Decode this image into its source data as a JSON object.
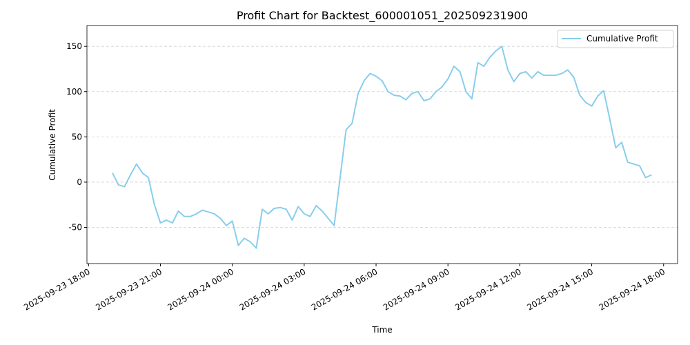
{
  "chart_data": {
    "type": "line",
    "title": "Profit Chart for Backtest_600001051_202509231900",
    "x_label": "Time",
    "y_label": "Cumulative Profit",
    "x": [
      "2025-09-23 19:00",
      "2025-09-23 19:15",
      "2025-09-23 19:30",
      "2025-09-23 19:45",
      "2025-09-23 20:00",
      "2025-09-23 20:15",
      "2025-09-23 20:30",
      "2025-09-23 20:45",
      "2025-09-23 21:00",
      "2025-09-23 21:15",
      "2025-09-23 21:30",
      "2025-09-23 21:45",
      "2025-09-23 22:00",
      "2025-09-23 22:15",
      "2025-09-23 22:30",
      "2025-09-23 22:45",
      "2025-09-23 23:00",
      "2025-09-23 23:15",
      "2025-09-23 23:30",
      "2025-09-23 23:45",
      "2025-09-24 00:00",
      "2025-09-24 00:15",
      "2025-09-24 00:30",
      "2025-09-24 00:45",
      "2025-09-24 01:00",
      "2025-09-24 01:15",
      "2025-09-24 01:30",
      "2025-09-24 01:45",
      "2025-09-24 02:00",
      "2025-09-24 02:15",
      "2025-09-24 02:30",
      "2025-09-24 02:45",
      "2025-09-24 03:00",
      "2025-09-24 03:15",
      "2025-09-24 03:30",
      "2025-09-24 03:45",
      "2025-09-24 04:00",
      "2025-09-24 04:15",
      "2025-09-24 04:30",
      "2025-09-24 04:45",
      "2025-09-24 05:00",
      "2025-09-24 05:15",
      "2025-09-24 05:30",
      "2025-09-24 05:45",
      "2025-09-24 06:00",
      "2025-09-24 06:15",
      "2025-09-24 06:30",
      "2025-09-24 06:45",
      "2025-09-24 07:00",
      "2025-09-24 07:15",
      "2025-09-24 07:30",
      "2025-09-24 07:45",
      "2025-09-24 08:00",
      "2025-09-24 08:15",
      "2025-09-24 08:30",
      "2025-09-24 08:45",
      "2025-09-24 09:00",
      "2025-09-24 09:15",
      "2025-09-24 09:30",
      "2025-09-24 09:45",
      "2025-09-24 10:00",
      "2025-09-24 10:15",
      "2025-09-24 10:30",
      "2025-09-24 10:45",
      "2025-09-24 11:00",
      "2025-09-24 11:15",
      "2025-09-24 11:30",
      "2025-09-24 11:45",
      "2025-09-24 12:00",
      "2025-09-24 12:15",
      "2025-09-24 12:30",
      "2025-09-24 12:45",
      "2025-09-24 13:00",
      "2025-09-24 13:15",
      "2025-09-24 13:30",
      "2025-09-24 13:45",
      "2025-09-24 14:00",
      "2025-09-24 14:15",
      "2025-09-24 14:30",
      "2025-09-24 14:45",
      "2025-09-24 15:00",
      "2025-09-24 15:15",
      "2025-09-24 15:30",
      "2025-09-24 15:45",
      "2025-09-24 16:00",
      "2025-09-24 16:15",
      "2025-09-24 16:30",
      "2025-09-24 16:45",
      "2025-09-24 17:00",
      "2025-09-24 17:15",
      "2025-09-24 17:30"
    ],
    "series": [
      {
        "name": "Cumulative Profit",
        "color": "#87ceeb",
        "values": [
          10,
          -3,
          -5,
          8,
          20,
          10,
          5,
          -25,
          -45,
          -42,
          -45,
          -32,
          -38,
          -38,
          -35,
          -31,
          -33,
          -35,
          -40,
          -48,
          -43,
          -70,
          -62,
          -66,
          -73,
          -30,
          -35,
          -29,
          -28,
          -30,
          -42,
          -27,
          -35,
          -38,
          -26,
          -32,
          -40,
          -48,
          5,
          58,
          65,
          98,
          112,
          120,
          117,
          112,
          100,
          96,
          95,
          91,
          98,
          100,
          90,
          92,
          100,
          105,
          114,
          128,
          122,
          100,
          92,
          132,
          128,
          138,
          145,
          150,
          124,
          111,
          120,
          122,
          115,
          122,
          118,
          118,
          118,
          120,
          124,
          116,
          96,
          88,
          84,
          95,
          101,
          70,
          38,
          44,
          22,
          20,
          18,
          5,
          8
        ]
      }
    ],
    "xlim": [
      "2025-09-23 17:56",
      "2025-09-24 18:35"
    ],
    "xticks": [
      "2025-09-23 18:00",
      "2025-09-23 21:00",
      "2025-09-24 00:00",
      "2025-09-24 03:00",
      "2025-09-24 06:00",
      "2025-09-24 09:00",
      "2025-09-24 12:00",
      "2025-09-24 15:00",
      "2025-09-24 18:00"
    ],
    "ylim": [
      -90,
      173
    ],
    "yticks": [
      -50,
      0,
      50,
      100,
      150
    ],
    "grid": true,
    "legend": "upper right"
  }
}
